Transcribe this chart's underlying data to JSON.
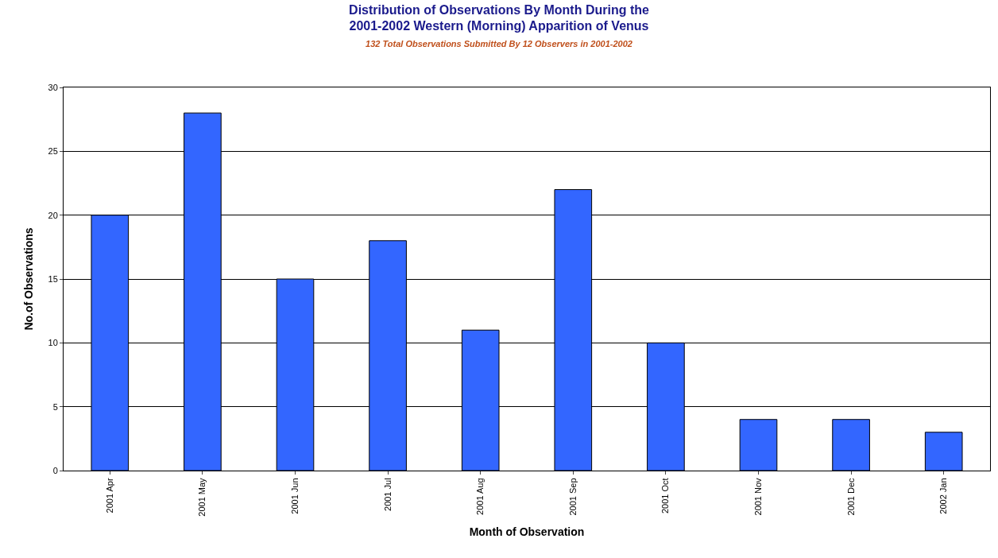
{
  "chart_data": {
    "type": "bar",
    "title": "Distribution of Observations By Month During the\n2001-2002 Western (Morning) Apparition of Venus",
    "subtitle": "132 Total Observations Submitted By 12 Observers in 2001-2002",
    "xlabel": "Month of Observation",
    "ylabel": "No.of Observations",
    "categories": [
      "2001 Apr",
      "2001 May",
      "2001 Jun",
      "2001 Jul",
      "2001 Aug",
      "2001 Sep",
      "2001 Oct",
      "2001 Nov",
      "2001 Dec",
      "2002 Jan"
    ],
    "values": [
      20,
      28,
      15,
      18,
      11,
      22,
      10,
      4,
      4,
      3
    ],
    "color": "#3366ff",
    "ylim": [
      0,
      30
    ],
    "yticks": [
      0,
      5,
      10,
      15,
      20,
      25,
      30
    ],
    "grid": "y"
  }
}
